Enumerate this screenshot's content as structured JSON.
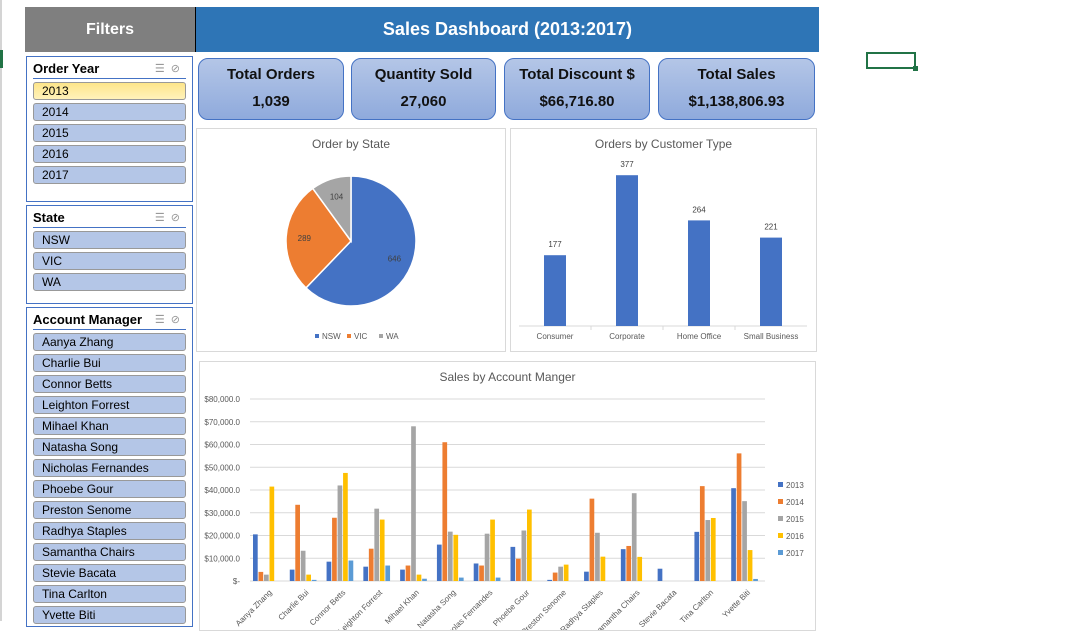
{
  "header": {
    "filters_label": "Filters",
    "title": "Sales Dashboard (2013:2017)"
  },
  "slicers": {
    "order_year": {
      "title": "Order Year",
      "items": [
        "2013",
        "2014",
        "2015",
        "2016",
        "2017"
      ],
      "selected": "2013"
    },
    "state": {
      "title": "State",
      "items": [
        "NSW",
        "VIC",
        "WA"
      ]
    },
    "account_manager": {
      "title": "Account Manager",
      "items": [
        "Aanya Zhang",
        "Charlie Bui",
        "Connor Betts",
        "Leighton Forrest",
        "Mihael Khan",
        "Natasha Song",
        "Nicholas Fernandes",
        "Phoebe Gour",
        "Preston Senome",
        "Radhya Staples",
        "Samantha Chairs",
        "Stevie Bacata",
        "Tina Carlton",
        "Yvette Biti"
      ]
    }
  },
  "kpis": [
    {
      "label": "Total Orders",
      "value": "1,039"
    },
    {
      "label": "Quantity Sold",
      "value": "27,060"
    },
    {
      "label": "Total Discount $",
      "value": "$66,716.80"
    },
    {
      "label": "Total Sales",
      "value": "$1,138,806.93"
    }
  ],
  "colors": {
    "accent": "#2e75b6",
    "s2013": "#4472c4",
    "s2014": "#ed7d31",
    "s2015": "#a5a5a5",
    "s2016": "#ffc000",
    "s2017": "#5b9bd5"
  },
  "chart_data": [
    {
      "type": "pie",
      "title": "Order by State",
      "categories": [
        "NSW",
        "VIC",
        "WA"
      ],
      "values": [
        646,
        289,
        104
      ],
      "legend": "bottom"
    },
    {
      "type": "bar",
      "title": "Orders by Customer Type",
      "categories": [
        "Consumer",
        "Corporate",
        "Home Office",
        "Small Business"
      ],
      "values": [
        177,
        377,
        264,
        221
      ]
    },
    {
      "type": "bar",
      "title": "Sales by Account Manger",
      "categories": [
        "Aanya Zhang",
        "Charlie Bui",
        "Connor Betts",
        "Leighton Forrest",
        "Mihael Khan",
        "Natasha Song",
        "Nicholas Fernandes",
        "Phoebe Gour",
        "Preston Senome",
        "Radhya Staples",
        "Samantha Chairs",
        "Stevie Bacata",
        "Tina Carlton",
        "Yvette Biti"
      ],
      "ylim": [
        0,
        80000
      ],
      "yticks": [
        "$-",
        "$10,000.0",
        "$20,000.0",
        "$30,000.0",
        "$40,000.0",
        "$50,000.0",
        "$60,000.0",
        "$70,000.0",
        "$80,000.0"
      ],
      "grid": true,
      "legend": "right",
      "series": [
        {
          "name": "2013",
          "values": [
            20500,
            5000,
            8500,
            6300,
            5000,
            16000,
            7700,
            15000,
            500,
            4100,
            14000,
            5400,
            21600,
            40800
          ]
        },
        {
          "name": "2014",
          "values": [
            4000,
            33500,
            27800,
            14200,
            6800,
            61000,
            6800,
            9800,
            3700,
            36200,
            15400,
            0,
            41700,
            56100
          ]
        },
        {
          "name": "2015",
          "values": [
            2800,
            13300,
            42000,
            31800,
            68000,
            21700,
            20800,
            22200,
            6300,
            21200,
            38600,
            0,
            26800,
            35100
          ]
        },
        {
          "name": "2016",
          "values": [
            41500,
            2800,
            47500,
            27000,
            2800,
            20300,
            27000,
            31400,
            7200,
            10700,
            10600,
            0,
            27700,
            13600
          ]
        },
        {
          "name": "2017",
          "values": [
            0,
            500,
            9000,
            6800,
            1000,
            1500,
            1500,
            0,
            0,
            0,
            0,
            0,
            0,
            900
          ]
        }
      ]
    }
  ]
}
